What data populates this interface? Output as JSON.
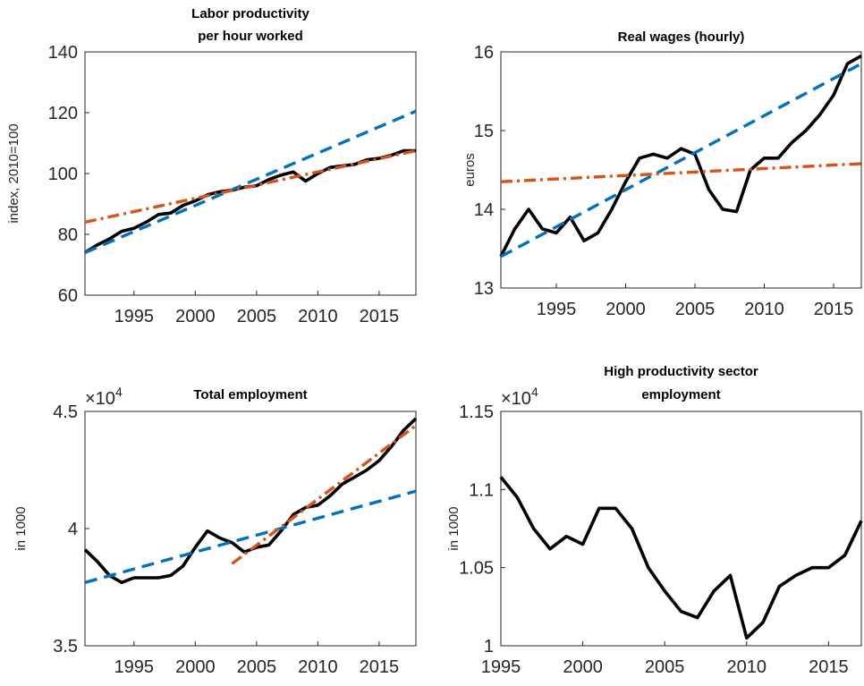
{
  "chart_data": [
    {
      "type": "line",
      "title": [
        "Labor productivity",
        "per hour worked"
      ],
      "y_label": "index, 2010=100",
      "x": [
        1991,
        1992,
        1993,
        1994,
        1995,
        1996,
        1997,
        1998,
        1999,
        2000,
        2001,
        2002,
        2003,
        2004,
        2005,
        2006,
        2007,
        2008,
        2009,
        2010,
        2011,
        2012,
        2013,
        2014,
        2015,
        2016,
        2017,
        2018
      ],
      "xlim": [
        1991,
        2018
      ],
      "xticks": [
        1995,
        2000,
        2005,
        2010,
        2015
      ],
      "ylim": [
        60,
        140
      ],
      "yticks": [
        60,
        80,
        100,
        120,
        140
      ],
      "series": [
        {
          "color": "#000000",
          "style": "solid",
          "values": [
            74,
            76.5,
            78.5,
            81,
            82,
            84,
            86.5,
            87,
            89.5,
            91,
            93,
            94,
            94.5,
            95.5,
            96,
            98,
            99.5,
            100.5,
            97.5,
            100,
            102,
            102.5,
            103,
            104.5,
            105,
            106,
            107.5,
            107.5
          ]
        },
        {
          "color": "#0072bd",
          "style": "dashed",
          "x": [
            1991,
            2018
          ],
          "values": [
            74,
            120.5
          ]
        },
        {
          "color": "#d95319",
          "style": "dashdot",
          "x": [
            1991,
            2018
          ],
          "values": [
            84,
            107.5
          ]
        }
      ]
    },
    {
      "type": "line",
      "title": [
        "Real wages (hourly)"
      ],
      "y_label": "euros",
      "x": [
        1991,
        1992,
        1993,
        1994,
        1995,
        1996,
        1997,
        1998,
        1999,
        2000,
        2001,
        2002,
        2003,
        2004,
        2005,
        2006,
        2007,
        2008,
        2009,
        2010,
        2011,
        2012,
        2013,
        2014,
        2015,
        2016,
        2017
      ],
      "xlim": [
        1991,
        2017
      ],
      "xticks": [
        1995,
        2000,
        2005,
        2010,
        2015
      ],
      "ylim": [
        13,
        16
      ],
      "yticks": [
        13,
        14,
        15,
        16
      ],
      "series": [
        {
          "color": "#000000",
          "style": "solid",
          "values": [
            13.4,
            13.75,
            14.0,
            13.75,
            13.7,
            13.9,
            13.6,
            13.7,
            14.0,
            14.35,
            14.65,
            14.7,
            14.65,
            14.77,
            14.7,
            14.25,
            14.0,
            13.97,
            14.5,
            14.65,
            14.65,
            14.85,
            15.0,
            15.2,
            15.45,
            15.85,
            15.95
          ]
        },
        {
          "color": "#0072bd",
          "style": "dashed",
          "x": [
            1991,
            2017
          ],
          "values": [
            13.4,
            15.85
          ]
        },
        {
          "color": "#d95319",
          "style": "dashdot",
          "x": [
            1991,
            2017
          ],
          "values": [
            14.35,
            14.58
          ]
        }
      ]
    },
    {
      "type": "line",
      "title": [
        "Total employment"
      ],
      "y_label": "in 1000",
      "y_multiplier_base": "×10",
      "y_multiplier_exponent": 4,
      "x": [
        1991,
        1992,
        1993,
        1994,
        1995,
        1996,
        1997,
        1998,
        1999,
        2000,
        2001,
        2002,
        2003,
        2004,
        2005,
        2006,
        2007,
        2008,
        2009,
        2010,
        2011,
        2012,
        2013,
        2014,
        2015,
        2016,
        2017,
        2018
      ],
      "xlim": [
        1991,
        2018
      ],
      "xticks": [
        1995,
        2000,
        2005,
        2010,
        2015
      ],
      "ylim": [
        3.5,
        4.5
      ],
      "yticks": [
        3.5,
        4,
        4.5
      ],
      "series": [
        {
          "color": "#000000",
          "style": "solid",
          "values": [
            3.91,
            3.86,
            3.8,
            3.77,
            3.79,
            3.79,
            3.79,
            3.8,
            3.84,
            3.92,
            3.99,
            3.96,
            3.94,
            3.9,
            3.92,
            3.93,
            3.99,
            4.06,
            4.09,
            4.1,
            4.14,
            4.19,
            4.22,
            4.25,
            4.29,
            4.35,
            4.42,
            4.47
          ]
        },
        {
          "color": "#0072bd",
          "style": "dashed",
          "x": [
            1991,
            2018
          ],
          "values": [
            3.77,
            4.16
          ]
        },
        {
          "color": "#d95319",
          "style": "dashdot",
          "x": [
            2003,
            2018
          ],
          "values": [
            3.85,
            4.44
          ]
        }
      ]
    },
    {
      "type": "line",
      "title": [
        "High productivity sector",
        "employment"
      ],
      "y_label": "in 1000",
      "y_multiplier_base": "×10",
      "y_multiplier_exponent": 4,
      "x": [
        1995,
        1996,
        1997,
        1998,
        1999,
        2000,
        2001,
        2002,
        2003,
        2004,
        2005,
        2006,
        2007,
        2008,
        2009,
        2010,
        2011,
        2012,
        2013,
        2014,
        2015,
        2016,
        2017
      ],
      "xlim": [
        1995,
        2017
      ],
      "xticks": [
        1995,
        2000,
        2005,
        2010,
        2015
      ],
      "ylim": [
        1,
        1.15
      ],
      "yticks": [
        1,
        1.05,
        1.1,
        1.15
      ],
      "series": [
        {
          "color": "#000000",
          "style": "solid",
          "values": [
            1.108,
            1.095,
            1.075,
            1.062,
            1.07,
            1.065,
            1.088,
            1.088,
            1.075,
            1.05,
            1.035,
            1.022,
            1.018,
            1.035,
            1.045,
            1.005,
            1.015,
            1.038,
            1.045,
            1.05,
            1.05,
            1.058,
            1.08
          ]
        }
      ]
    }
  ]
}
